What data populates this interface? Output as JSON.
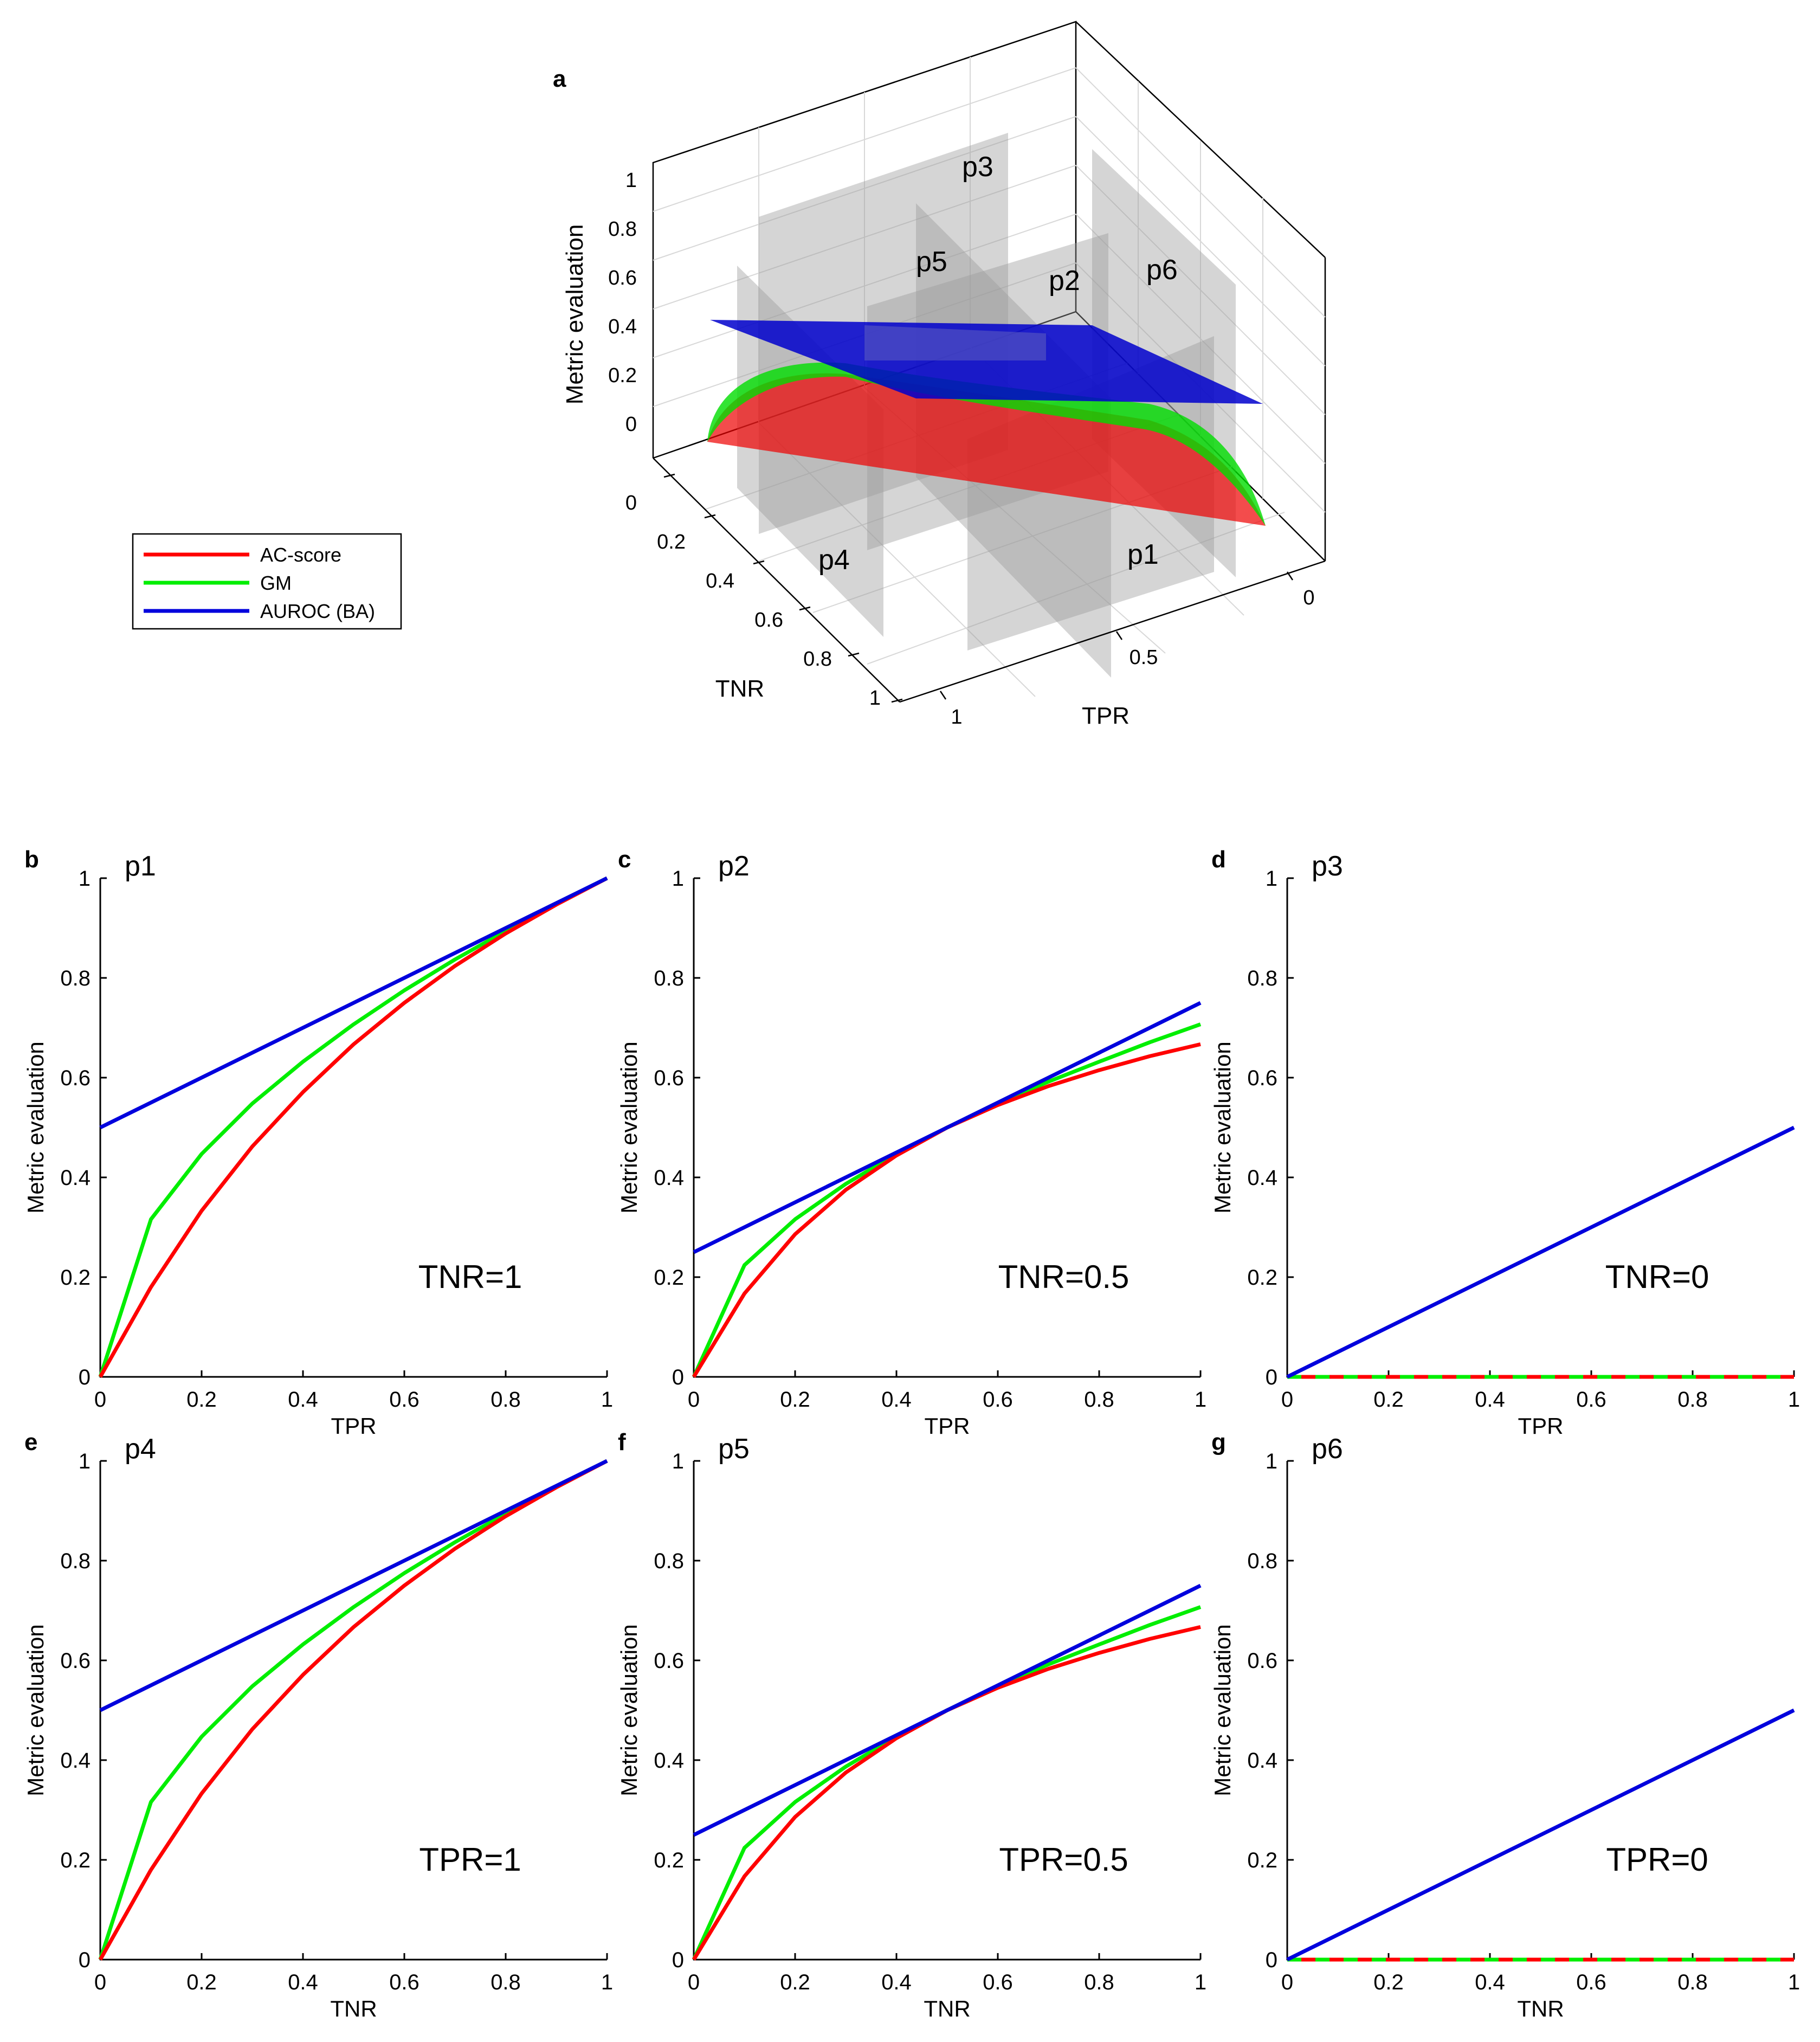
{
  "figure": {
    "panel_letters": [
      "a",
      "b",
      "c",
      "d",
      "e",
      "f",
      "g"
    ]
  },
  "legend": {
    "entries": [
      {
        "label": "AC-score",
        "color": "#ff0000"
      },
      {
        "label": "GM",
        "color": "#00ee00"
      },
      {
        "label": "AUROC (BA)",
        "color": "#0000dd"
      }
    ]
  },
  "chart_data": [
    {
      "type": "surface3d",
      "panel": "a",
      "zlabel": "Metric evaluation",
      "xlabel": "TPR",
      "ylabel": "TNR",
      "z_ticks": [
        "0",
        "0.2",
        "0.4",
        "0.6",
        "0.8",
        "1"
      ],
      "tnr_ticks": [
        "0",
        "0.2",
        "0.4",
        "0.6",
        "0.8",
        "1"
      ],
      "tpr_ticks": [
        "0",
        "0.5",
        "1"
      ],
      "planes": [
        "p1",
        "p2",
        "p3",
        "p4",
        "p5",
        "p6"
      ],
      "surfaces": [
        "AC-score",
        "GM",
        "AUROC (BA)"
      ]
    },
    {
      "type": "line",
      "panel": "b",
      "plane": "p1",
      "annotation": "TNR=1",
      "xlabel": "TPR",
      "ylabel": "Metric evaluation",
      "xlim": [
        0,
        1
      ],
      "ylim": [
        0,
        1
      ],
      "xticks": [
        "0",
        "0.2",
        "0.4",
        "0.6",
        "0.8",
        "1"
      ],
      "yticks": [
        "0",
        "0.2",
        "0.4",
        "0.6",
        "0.8",
        "1"
      ],
      "fixed": 1,
      "series": [
        {
          "name": "AC-score",
          "color": "#ff0000",
          "x": [
            0,
            0.1,
            0.2,
            0.3,
            0.4,
            0.5,
            0.6,
            0.7,
            0.8,
            0.9,
            1
          ],
          "y": [
            0,
            0.18,
            0.333,
            0.462,
            0.571,
            0.667,
            0.75,
            0.824,
            0.889,
            0.947,
            1
          ]
        },
        {
          "name": "GM",
          "color": "#00ee00",
          "x": [
            0,
            0.1,
            0.2,
            0.3,
            0.4,
            0.5,
            0.6,
            0.7,
            0.8,
            0.9,
            1
          ],
          "y": [
            0,
            0.316,
            0.447,
            0.548,
            0.632,
            0.707,
            0.775,
            0.837,
            0.894,
            0.949,
            1
          ]
        },
        {
          "name": "AUROC (BA)",
          "color": "#0000dd",
          "x": [
            0,
            1
          ],
          "y": [
            0.5,
            1
          ]
        }
      ]
    },
    {
      "type": "line",
      "panel": "c",
      "plane": "p2",
      "annotation": "TNR=0.5",
      "xlabel": "TPR",
      "ylabel": "Metric evaluation",
      "xlim": [
        0,
        1
      ],
      "ylim": [
        0,
        1
      ],
      "xticks": [
        "0",
        "0.2",
        "0.4",
        "0.6",
        "0.8",
        "1"
      ],
      "yticks": [
        "0",
        "0.2",
        "0.4",
        "0.6",
        "0.8",
        "1"
      ],
      "fixed": 0.5,
      "series": [
        {
          "name": "AC-score",
          "color": "#ff0000",
          "x": [
            0,
            0.1,
            0.2,
            0.3,
            0.4,
            0.5,
            0.6,
            0.7,
            0.8,
            0.9,
            1
          ],
          "y": [
            0,
            0.167,
            0.286,
            0.375,
            0.444,
            0.5,
            0.545,
            0.583,
            0.615,
            0.643,
            0.667
          ]
        },
        {
          "name": "GM",
          "color": "#00ee00",
          "x": [
            0,
            0.1,
            0.2,
            0.3,
            0.4,
            0.5,
            0.6,
            0.7,
            0.8,
            0.9,
            1
          ],
          "y": [
            0,
            0.224,
            0.316,
            0.387,
            0.447,
            0.5,
            0.548,
            0.592,
            0.632,
            0.671,
            0.707
          ]
        },
        {
          "name": "AUROC (BA)",
          "color": "#0000dd",
          "x": [
            0,
            1
          ],
          "y": [
            0.25,
            0.75
          ]
        }
      ]
    },
    {
      "type": "line",
      "panel": "d",
      "plane": "p3",
      "annotation": "TNR=0",
      "xlabel": "TPR",
      "ylabel": "Metric evaluation",
      "xlim": [
        0,
        1
      ],
      "ylim": [
        0,
        1
      ],
      "xticks": [
        "0",
        "0.2",
        "0.4",
        "0.6",
        "0.8",
        "1"
      ],
      "yticks": [
        "0",
        "0.2",
        "0.4",
        "0.6",
        "0.8",
        "1"
      ],
      "fixed": 0,
      "series": [
        {
          "name": "AC-score",
          "color": "#ff0000",
          "x": [
            0,
            1
          ],
          "y": [
            0,
            0
          ]
        },
        {
          "name": "GM",
          "color": "#00ee00",
          "x": [
            0,
            1
          ],
          "y": [
            0,
            0
          ]
        },
        {
          "name": "AUROC (BA)",
          "color": "#0000dd",
          "x": [
            0,
            1
          ],
          "y": [
            0,
            0.5
          ]
        }
      ]
    },
    {
      "type": "line",
      "panel": "e",
      "plane": "p4",
      "annotation": "TPR=1",
      "xlabel": "TNR",
      "ylabel": "Metric evaluation",
      "xlim": [
        0,
        1
      ],
      "ylim": [
        0,
        1
      ],
      "xticks": [
        "0",
        "0.2",
        "0.4",
        "0.6",
        "0.8",
        "1"
      ],
      "yticks": [
        "0",
        "0.2",
        "0.4",
        "0.6",
        "0.8",
        "1"
      ],
      "fixed": 1,
      "series": [
        {
          "name": "AC-score",
          "color": "#ff0000",
          "x": [
            0,
            0.1,
            0.2,
            0.3,
            0.4,
            0.5,
            0.6,
            0.7,
            0.8,
            0.9,
            1
          ],
          "y": [
            0,
            0.18,
            0.333,
            0.462,
            0.571,
            0.667,
            0.75,
            0.824,
            0.889,
            0.947,
            1
          ]
        },
        {
          "name": "GM",
          "color": "#00ee00",
          "x": [
            0,
            0.1,
            0.2,
            0.3,
            0.4,
            0.5,
            0.6,
            0.7,
            0.8,
            0.9,
            1
          ],
          "y": [
            0,
            0.316,
            0.447,
            0.548,
            0.632,
            0.707,
            0.775,
            0.837,
            0.894,
            0.949,
            1
          ]
        },
        {
          "name": "AUROC (BA)",
          "color": "#0000dd",
          "x": [
            0,
            1
          ],
          "y": [
            0.5,
            1
          ]
        }
      ]
    },
    {
      "type": "line",
      "panel": "f",
      "plane": "p5",
      "annotation": "TPR=0.5",
      "xlabel": "TNR",
      "ylabel": "Metric evaluation",
      "xlim": [
        0,
        1
      ],
      "ylim": [
        0,
        1
      ],
      "xticks": [
        "0",
        "0.2",
        "0.4",
        "0.6",
        "0.8",
        "1"
      ],
      "yticks": [
        "0",
        "0.2",
        "0.4",
        "0.6",
        "0.8",
        "1"
      ],
      "fixed": 0.5,
      "series": [
        {
          "name": "AC-score",
          "color": "#ff0000",
          "x": [
            0,
            0.1,
            0.2,
            0.3,
            0.4,
            0.5,
            0.6,
            0.7,
            0.8,
            0.9,
            1
          ],
          "y": [
            0,
            0.167,
            0.286,
            0.375,
            0.444,
            0.5,
            0.545,
            0.583,
            0.615,
            0.643,
            0.667
          ]
        },
        {
          "name": "GM",
          "color": "#00ee00",
          "x": [
            0,
            0.1,
            0.2,
            0.3,
            0.4,
            0.5,
            0.6,
            0.7,
            0.8,
            0.9,
            1
          ],
          "y": [
            0,
            0.224,
            0.316,
            0.387,
            0.447,
            0.5,
            0.548,
            0.592,
            0.632,
            0.671,
            0.707
          ]
        },
        {
          "name": "AUROC (BA)",
          "color": "#0000dd",
          "x": [
            0,
            1
          ],
          "y": [
            0.25,
            0.75
          ]
        }
      ]
    },
    {
      "type": "line",
      "panel": "g",
      "plane": "p6",
      "annotation": "TPR=0",
      "xlabel": "TNR",
      "ylabel": "Metric evaluation",
      "xlim": [
        0,
        1
      ],
      "ylim": [
        0,
        1
      ],
      "xticks": [
        "0",
        "0.2",
        "0.4",
        "0.6",
        "0.8",
        "1"
      ],
      "yticks": [
        "0",
        "0.2",
        "0.4",
        "0.6",
        "0.8",
        "1"
      ],
      "fixed": 0,
      "series": [
        {
          "name": "AC-score",
          "color": "#ff0000",
          "x": [
            0,
            1
          ],
          "y": [
            0,
            0
          ]
        },
        {
          "name": "GM",
          "color": "#00ee00",
          "x": [
            0,
            1
          ],
          "y": [
            0,
            0
          ]
        },
        {
          "name": "AUROC (BA)",
          "color": "#0000dd",
          "x": [
            0,
            1
          ],
          "y": [
            0,
            0.5
          ]
        }
      ]
    }
  ]
}
